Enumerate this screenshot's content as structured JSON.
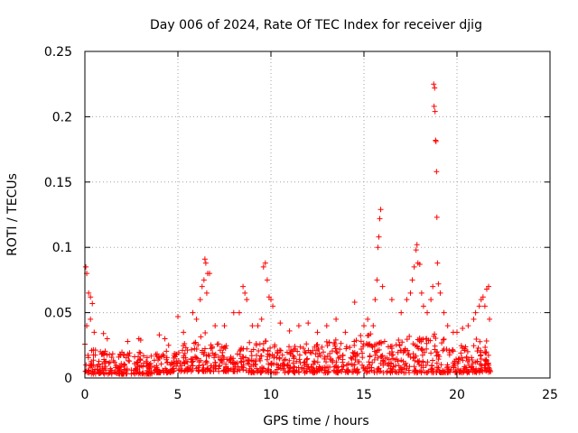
{
  "chart_data": {
    "type": "scatter",
    "title": "Day 006 of 2024, Rate Of TEC Index for receiver djig",
    "xlabel": "GPS time / hours",
    "ylabel": "ROTI / TECUs",
    "xlim": [
      0,
      25
    ],
    "ylim": [
      0,
      0.25
    ],
    "xticks": [
      "0",
      "5",
      "10",
      "15",
      "20",
      "25"
    ],
    "yticks": [
      "0",
      "0.05",
      "0.1",
      "0.15",
      "0.2",
      "0.25"
    ],
    "grid": true,
    "marker": "+",
    "color": "#ff0000",
    "series": [
      {
        "points": [
          [
            0.05,
            0.085
          ],
          [
            0.1,
            0.08
          ],
          [
            0.2,
            0.065
          ],
          [
            0.3,
            0.062
          ],
          [
            0.4,
            0.057
          ],
          [
            0.1,
            0.04
          ],
          [
            0.3,
            0.045
          ],
          [
            0.5,
            0.035
          ],
          [
            1.0,
            0.034
          ],
          [
            1.2,
            0.03
          ],
          [
            2.3,
            0.028
          ],
          [
            2.9,
            0.03
          ],
          [
            3.0,
            0.029
          ],
          [
            4.0,
            0.033
          ],
          [
            4.3,
            0.03
          ],
          [
            4.5,
            0.025
          ],
          [
            5.0,
            0.047
          ],
          [
            5.3,
            0.035
          ],
          [
            5.8,
            0.05
          ],
          [
            6.0,
            0.045
          ],
          [
            6.2,
            0.06
          ],
          [
            6.3,
            0.07
          ],
          [
            6.45,
            0.091
          ],
          [
            6.5,
            0.088
          ],
          [
            6.6,
            0.08
          ],
          [
            6.7,
            0.08
          ],
          [
            6.4,
            0.075
          ],
          [
            6.55,
            0.065
          ],
          [
            7.0,
            0.04
          ],
          [
            7.5,
            0.04
          ],
          [
            8.0,
            0.05
          ],
          [
            8.3,
            0.05
          ],
          [
            8.5,
            0.07
          ],
          [
            8.6,
            0.065
          ],
          [
            8.7,
            0.06
          ],
          [
            9.0,
            0.04
          ],
          [
            9.3,
            0.04
          ],
          [
            9.5,
            0.045
          ],
          [
            9.6,
            0.085
          ],
          [
            9.7,
            0.088
          ],
          [
            9.8,
            0.075
          ],
          [
            9.9,
            0.062
          ],
          [
            10.0,
            0.06
          ],
          [
            10.1,
            0.055
          ],
          [
            10.5,
            0.042
          ],
          [
            11.0,
            0.036
          ],
          [
            11.5,
            0.04
          ],
          [
            12.0,
            0.042
          ],
          [
            12.5,
            0.035
          ],
          [
            13.0,
            0.04
          ],
          [
            13.5,
            0.045
          ],
          [
            14.0,
            0.035
          ],
          [
            14.5,
            0.058
          ],
          [
            15.0,
            0.04
          ],
          [
            15.2,
            0.045
          ],
          [
            15.5,
            0.04
          ],
          [
            15.6,
            0.06
          ],
          [
            15.7,
            0.075
          ],
          [
            15.75,
            0.1
          ],
          [
            15.8,
            0.108
          ],
          [
            15.85,
            0.122
          ],
          [
            15.9,
            0.129
          ],
          [
            16.0,
            0.07
          ],
          [
            16.5,
            0.06
          ],
          [
            17.0,
            0.05
          ],
          [
            17.3,
            0.06
          ],
          [
            17.5,
            0.065
          ],
          [
            17.6,
            0.075
          ],
          [
            17.7,
            0.085
          ],
          [
            17.8,
            0.098
          ],
          [
            17.85,
            0.102
          ],
          [
            17.9,
            0.088
          ],
          [
            18.0,
            0.087
          ],
          [
            18.1,
            0.065
          ],
          [
            18.2,
            0.055
          ],
          [
            18.4,
            0.05
          ],
          [
            18.6,
            0.06
          ],
          [
            18.7,
            0.07
          ],
          [
            18.75,
            0.225
          ],
          [
            18.8,
            0.222
          ],
          [
            18.77,
            0.208
          ],
          [
            18.82,
            0.204
          ],
          [
            18.85,
            0.182
          ],
          [
            18.87,
            0.181
          ],
          [
            18.9,
            0.158
          ],
          [
            18.92,
            0.123
          ],
          [
            18.95,
            0.088
          ],
          [
            19.0,
            0.072
          ],
          [
            19.1,
            0.065
          ],
          [
            19.3,
            0.05
          ],
          [
            19.5,
            0.04
          ],
          [
            19.8,
            0.035
          ],
          [
            20.0,
            0.035
          ],
          [
            20.3,
            0.038
          ],
          [
            20.6,
            0.04
          ],
          [
            20.9,
            0.045
          ],
          [
            21.0,
            0.05
          ],
          [
            21.2,
            0.055
          ],
          [
            21.3,
            0.06
          ],
          [
            21.4,
            0.062
          ],
          [
            21.5,
            0.055
          ],
          [
            21.6,
            0.068
          ],
          [
            21.7,
            0.07
          ],
          [
            21.75,
            0.045
          ]
        ],
        "band": {
          "x": [
            0,
            0.5,
            1,
            1.5,
            2,
            2.5,
            3,
            3.5,
            4,
            4.5,
            5,
            5.5,
            6,
            6.5,
            7,
            7.5,
            8,
            8.5,
            9,
            9.5,
            10,
            10.5,
            11,
            11.5,
            12,
            12.5,
            13,
            13.5,
            14,
            14.5,
            15,
            15.5,
            16,
            16.5,
            17,
            17.5,
            18,
            18.5,
            19,
            19.5,
            20,
            20.5,
            21,
            21.5,
            21.8
          ],
          "low": [
            0.003,
            0.003,
            0.003,
            0.003,
            0.003,
            0.003,
            0.003,
            0.003,
            0.004,
            0.004,
            0.005,
            0.005,
            0.005,
            0.005,
            0.005,
            0.005,
            0.005,
            0.005,
            0.004,
            0.004,
            0.004,
            0.004,
            0.004,
            0.004,
            0.004,
            0.004,
            0.004,
            0.004,
            0.004,
            0.004,
            0.004,
            0.004,
            0.004,
            0.004,
            0.004,
            0.004,
            0.004,
            0.004,
            0.004,
            0.004,
            0.004,
            0.004,
            0.004,
            0.004,
            0.004
          ],
          "high": [
            0.03,
            0.025,
            0.022,
            0.02,
            0.02,
            0.02,
            0.02,
            0.018,
            0.02,
            0.022,
            0.025,
            0.028,
            0.03,
            0.035,
            0.028,
            0.026,
            0.026,
            0.03,
            0.028,
            0.028,
            0.03,
            0.025,
            0.025,
            0.025,
            0.027,
            0.027,
            0.028,
            0.03,
            0.03,
            0.03,
            0.035,
            0.035,
            0.03,
            0.03,
            0.03,
            0.035,
            0.035,
            0.035,
            0.035,
            0.03,
            0.025,
            0.025,
            0.03,
            0.03,
            0.025
          ]
        }
      }
    ]
  }
}
